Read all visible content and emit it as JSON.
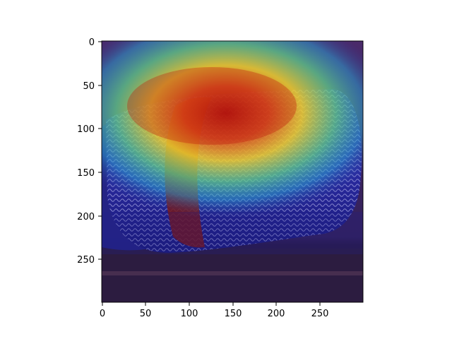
{
  "figure": {
    "axes": {
      "x_ticks": [
        "0",
        "50",
        "100",
        "150",
        "200",
        "250"
      ],
      "y_ticks": [
        "0",
        "50",
        "100",
        "150",
        "200",
        "250"
      ],
      "x_range": [
        0,
        299
      ],
      "y_range": [
        0,
        299
      ]
    },
    "image": {
      "subject": "microphone grille photo",
      "overlay": "heatmap (jet colormap)",
      "hotspot_center": [
        150,
        100
      ],
      "colors": {
        "background": "#3a2456",
        "floor": "#2a1a3e",
        "heat_red": "#c81e0c",
        "heat_yellow": "#f2d22c",
        "heat_cyan": "#36c6c4",
        "cool_blue": "#1e1e8c"
      }
    }
  }
}
